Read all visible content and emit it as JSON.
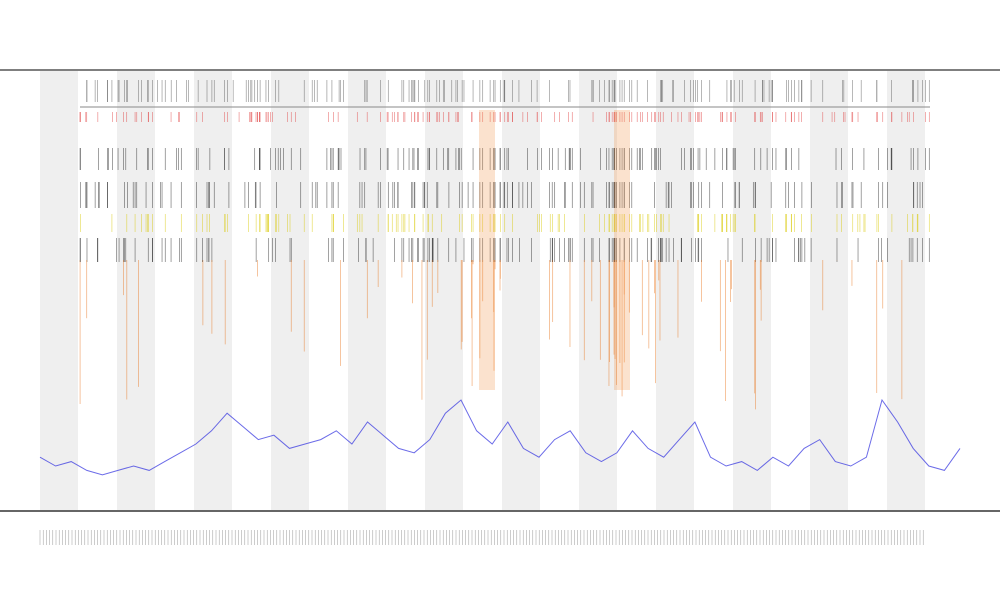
{
  "chart_data": {
    "type": "line",
    "values": [
      12,
      10,
      11,
      9,
      8,
      9,
      10,
      9,
      11,
      13,
      15,
      18,
      22,
      19,
      16,
      17,
      14,
      15,
      16,
      18,
      15,
      20,
      17,
      14,
      13,
      16,
      22,
      25,
      18,
      15,
      20,
      14,
      12,
      16,
      18,
      13,
      11,
      13,
      18,
      14,
      12,
      16,
      20,
      12,
      10,
      11,
      9,
      12,
      10,
      14,
      16,
      11,
      10,
      12,
      25,
      20,
      14,
      10,
      9,
      14
    ],
    "color": "#3a3ae0",
    "ylim": [
      0,
      100
    ]
  }
}
